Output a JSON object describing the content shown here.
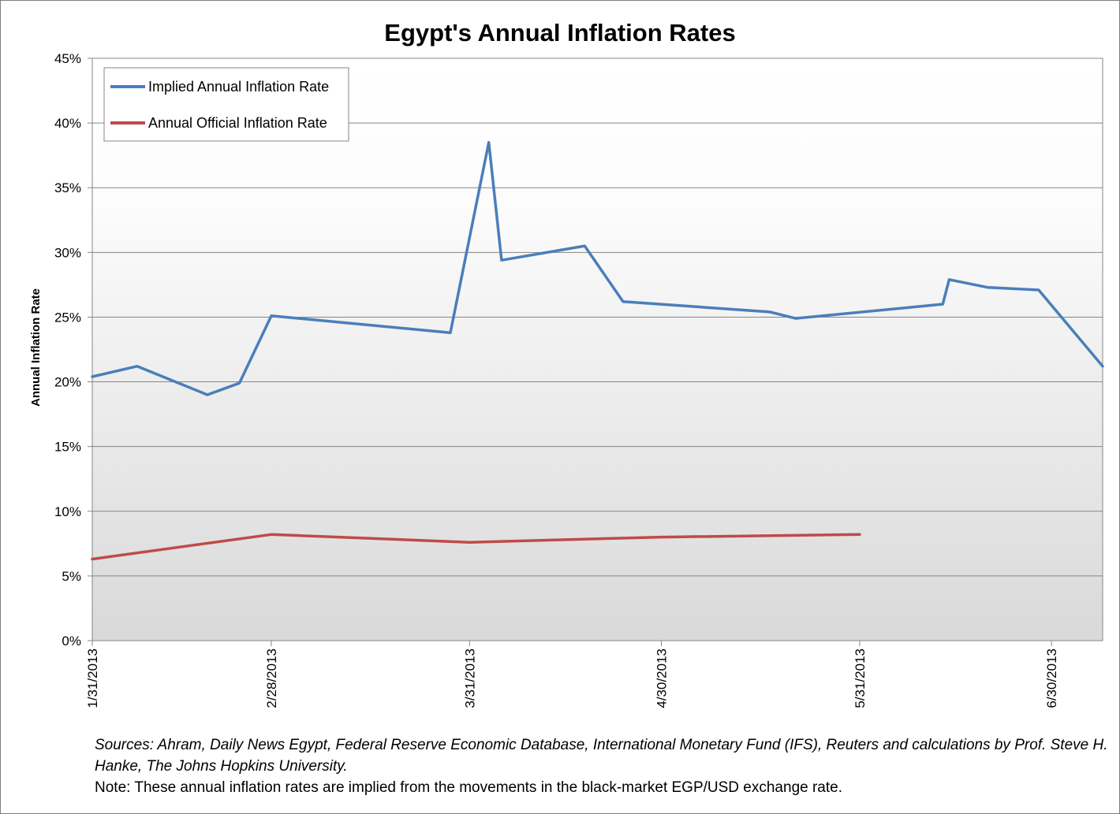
{
  "chart_data": {
    "type": "line",
    "title": "Egypt's Annual Inflation Rates",
    "ylabel": "Annual Inflation Rate",
    "xlabel": "",
    "ylim": [
      0,
      45
    ],
    "xlim": [
      "2013-01-31",
      "2013-07-08"
    ],
    "y_ticks": [
      "0%",
      "5%",
      "10%",
      "15%",
      "20%",
      "25%",
      "30%",
      "35%",
      "40%",
      "45%"
    ],
    "y_tick_values": [
      0,
      5,
      10,
      15,
      20,
      25,
      30,
      35,
      40,
      45
    ],
    "x_ticks": [
      "1/31/2013",
      "2/28/2013",
      "3/31/2013",
      "4/30/2013",
      "5/31/2013",
      "6/30/2013"
    ],
    "x_tick_dates": [
      "2013-01-31",
      "2013-02-28",
      "2013-03-31",
      "2013-04-30",
      "2013-05-31",
      "2013-06-30"
    ],
    "grid": true,
    "legend_position": "top-left",
    "series": [
      {
        "name": "Implied Annual Inflation Rate",
        "color": "#4a7ebb",
        "points": [
          {
            "x": "2013-01-31",
            "y": 20.4
          },
          {
            "x": "2013-02-07",
            "y": 21.2
          },
          {
            "x": "2013-02-18",
            "y": 19.0
          },
          {
            "x": "2013-02-23",
            "y": 19.9
          },
          {
            "x": "2013-02-28",
            "y": 25.1
          },
          {
            "x": "2013-03-28",
            "y": 23.8
          },
          {
            "x": "2013-04-03",
            "y": 38.5
          },
          {
            "x": "2013-04-05",
            "y": 29.4
          },
          {
            "x": "2013-04-18",
            "y": 30.5
          },
          {
            "x": "2013-04-24",
            "y": 26.2
          },
          {
            "x": "2013-05-17",
            "y": 25.4
          },
          {
            "x": "2013-05-21",
            "y": 24.9
          },
          {
            "x": "2013-06-13",
            "y": 26.0
          },
          {
            "x": "2013-06-14",
            "y": 27.9
          },
          {
            "x": "2013-06-20",
            "y": 27.3
          },
          {
            "x": "2013-06-28",
            "y": 27.1
          },
          {
            "x": "2013-07-08",
            "y": 21.2
          }
        ]
      },
      {
        "name": "Annual Official Inflation Rate",
        "color": "#be4b48",
        "points": [
          {
            "x": "2013-01-31",
            "y": 6.3
          },
          {
            "x": "2013-02-28",
            "y": 8.2
          },
          {
            "x": "2013-03-31",
            "y": 7.6
          },
          {
            "x": "2013-04-30",
            "y": 8.0
          },
          {
            "x": "2013-05-31",
            "y": 8.2
          }
        ]
      }
    ]
  },
  "footnote": {
    "sources": "Sources: Ahram, Daily News Egypt, Federal Reserve Economic Database, International Monetary Fund (IFS),  Reuters and calculations by Prof. Steve H. Hanke, The Johns Hopkins University.",
    "note": "Note: These annual inflation rates are implied from the movements in the  black-market EGP/USD exchange rate."
  },
  "colors": {
    "implied": "#4a7ebb",
    "official": "#be4b48",
    "grid": "#868686"
  }
}
